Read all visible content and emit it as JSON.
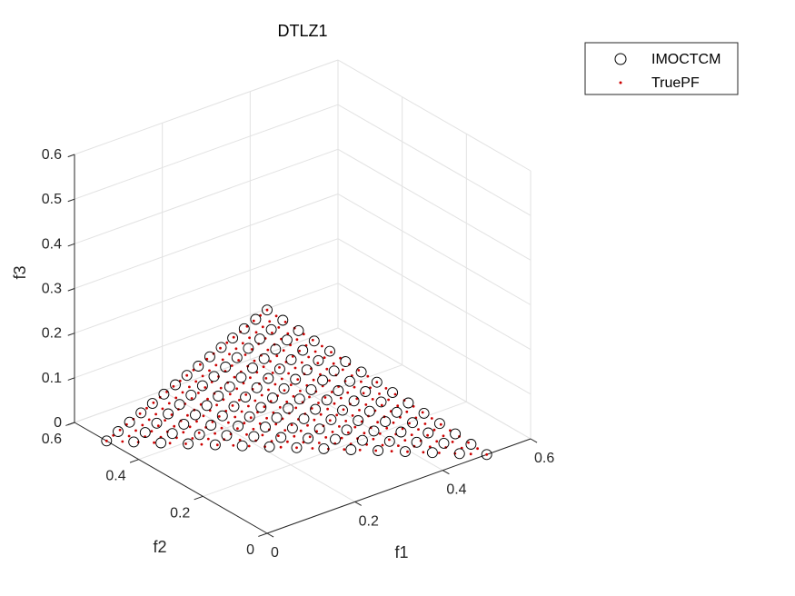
{
  "chart_data": {
    "type": "scatter",
    "title": "DTLZ1",
    "xlabel": "f1",
    "ylabel": "f2",
    "zlabel": "f3",
    "xlim": [
      0,
      0.6
    ],
    "ylim": [
      0,
      0.6
    ],
    "zlim": [
      0,
      0.6
    ],
    "xticks": [
      "0",
      "0.2",
      "0.4",
      "0.6"
    ],
    "yticks": [
      "0",
      "0.2",
      "0.4",
      "0.6"
    ],
    "zticks": [
      "0",
      "0.1",
      "0.2",
      "0.3",
      "0.4",
      "0.5",
      "0.6"
    ],
    "grid": true,
    "legend_position": "top-right",
    "series": [
      {
        "name": "IMOCTCM",
        "marker": "open-circle",
        "color": "#000000",
        "surface": "f1 + f2 + f3 = 0.5",
        "grid_divisions": 14
      },
      {
        "name": "TruePF",
        "marker": "dot",
        "color": "#cc0000",
        "surface": "f1 + f2 + f3 = 0.5",
        "grid_divisions": 24
      }
    ]
  }
}
